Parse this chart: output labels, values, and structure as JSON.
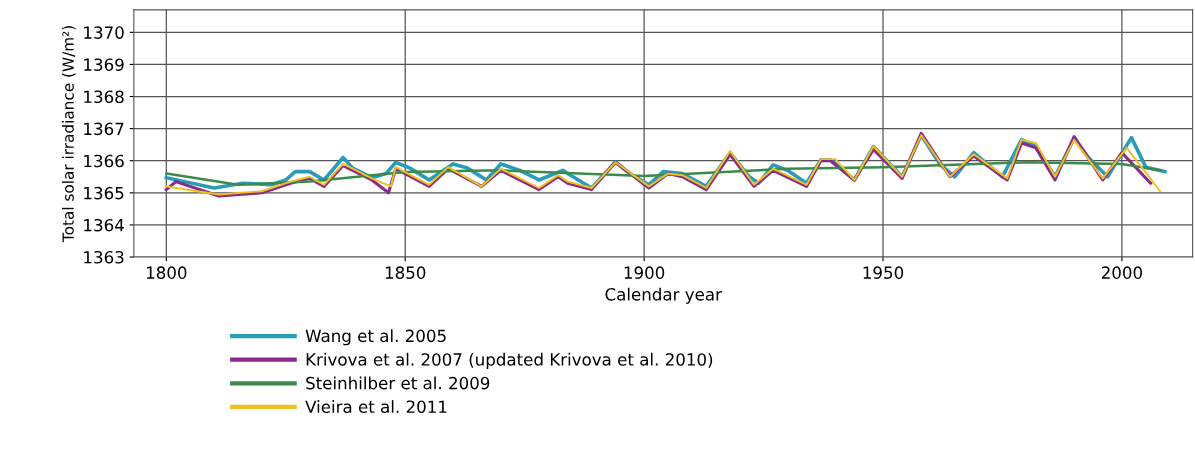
{
  "chart_data": {
    "type": "line",
    "xlabel": "Calendar year",
    "ylabel": "Total solar irradiance (W/m²)",
    "xlim": [
      1793.2,
      2014.8
    ],
    "xticks": [
      1800,
      1850,
      1900,
      1950,
      2000
    ],
    "ylim": [
      1363,
      1370.7
    ],
    "yticks": [
      1363,
      1364,
      1365,
      1366,
      1367,
      1368,
      1369,
      1370
    ],
    "grid": true,
    "legend": "bottom",
    "series": [
      {
        "name": "Wang et al. 2005",
        "color": "#2a9bb8",
        "x": [
          1800,
          1810,
          1816,
          1822,
          1825,
          1827,
          1830,
          1833,
          1837,
          1839,
          1843,
          1846,
          1848,
          1851,
          1855,
          1860,
          1863,
          1867,
          1870,
          1874,
          1878,
          1883,
          1884,
          1889,
          1894,
          1897,
          1901,
          1904,
          1908,
          1913,
          1918,
          1922,
          1924,
          1927,
          1930,
          1934,
          1937,
          1939,
          1944,
          1948,
          1954,
          1958,
          1962,
          1965,
          1969,
          1975,
          1979,
          1982,
          1986,
          1990,
          1993,
          1997,
          2002,
          2005,
          2009
        ],
        "values": [
          1365.47,
          1365.15,
          1365.3,
          1365.25,
          1365.4,
          1365.66,
          1365.66,
          1365.4,
          1366.1,
          1365.77,
          1365.47,
          1365.6,
          1365.95,
          1365.77,
          1365.4,
          1365.9,
          1365.77,
          1365.4,
          1365.9,
          1365.7,
          1365.4,
          1365.7,
          1365.6,
          1365.15,
          1365.96,
          1365.6,
          1365.25,
          1365.66,
          1365.6,
          1365.2,
          1366.25,
          1365.5,
          1365.3,
          1365.87,
          1365.7,
          1365.3,
          1366.03,
          1366.03,
          1365.4,
          1366.44,
          1365.5,
          1366.8,
          1365.87,
          1365.5,
          1366.25,
          1365.5,
          1366.66,
          1366.44,
          1365.5,
          1366.7,
          1366.1,
          1365.5,
          1366.72,
          1365.8,
          1365.66
        ]
      },
      {
        "name": "Krivova et al. 2007 (updated Krivova et al. 2010)",
        "color": "#8a2a8a",
        "x": [
          1800,
          1802,
          1811,
          1820,
          1826,
          1830,
          1833,
          1837,
          1843,
          1846.5,
          1848,
          1855,
          1859,
          1866,
          1870,
          1878,
          1882,
          1884,
          1889,
          1894,
          1901,
          1905,
          1908,
          1913,
          1918,
          1923,
          1927,
          1934,
          1937,
          1939,
          1944,
          1948,
          1954,
          1958,
          1964,
          1969,
          1976,
          1979,
          1982,
          1986,
          1990,
          1996,
          2000,
          2006
        ],
        "values": [
          1365.1,
          1365.35,
          1364.9,
          1365.0,
          1365.3,
          1365.45,
          1365.2,
          1365.85,
          1365.4,
          1365.0,
          1365.75,
          1365.2,
          1365.75,
          1365.2,
          1365.7,
          1365.1,
          1365.5,
          1365.3,
          1365.1,
          1365.95,
          1365.15,
          1365.6,
          1365.5,
          1365.1,
          1366.2,
          1365.2,
          1365.7,
          1365.2,
          1366.0,
          1366.0,
          1365.4,
          1366.35,
          1365.45,
          1366.85,
          1365.5,
          1366.15,
          1365.4,
          1366.55,
          1366.4,
          1365.4,
          1366.75,
          1365.4,
          1366.25,
          1365.3
        ]
      },
      {
        "name": "Steinhilber et al. 2009",
        "color": "#3a8a4a",
        "x": [
          1800,
          1815,
          1830,
          1850,
          1870,
          1900,
          1930,
          1950,
          1980,
          2000,
          2008
        ],
        "values": [
          1365.6,
          1365.25,
          1365.35,
          1365.65,
          1365.7,
          1365.52,
          1365.75,
          1365.8,
          1365.95,
          1365.9,
          1365.7
        ]
      },
      {
        "name": "Vieira et al. 2011",
        "color": "#f0c020",
        "x": [
          1800,
          1811,
          1820,
          1826,
          1830,
          1833,
          1837,
          1843,
          1847,
          1848,
          1855,
          1859,
          1866,
          1870,
          1878,
          1882,
          1884,
          1889,
          1894,
          1901,
          1905,
          1908,
          1913,
          1918,
          1923,
          1927,
          1934,
          1937,
          1940,
          1944,
          1948,
          1954,
          1958,
          1964,
          1969,
          1976,
          1979,
          1982,
          1986,
          1990,
          1996,
          2001,
          2008
        ],
        "values": [
          1365.2,
          1364.95,
          1365.05,
          1365.35,
          1365.5,
          1365.25,
          1365.9,
          1365.45,
          1365.2,
          1365.8,
          1365.25,
          1365.8,
          1365.2,
          1365.75,
          1365.15,
          1365.55,
          1365.35,
          1365.15,
          1365.95,
          1365.2,
          1365.6,
          1365.55,
          1365.15,
          1366.3,
          1365.25,
          1365.75,
          1365.25,
          1366.05,
          1366.05,
          1365.4,
          1366.45,
          1365.5,
          1366.8,
          1365.5,
          1366.2,
          1365.45,
          1366.65,
          1366.55,
          1365.5,
          1366.65,
          1365.45,
          1366.4,
          1365.05
        ]
      }
    ]
  }
}
